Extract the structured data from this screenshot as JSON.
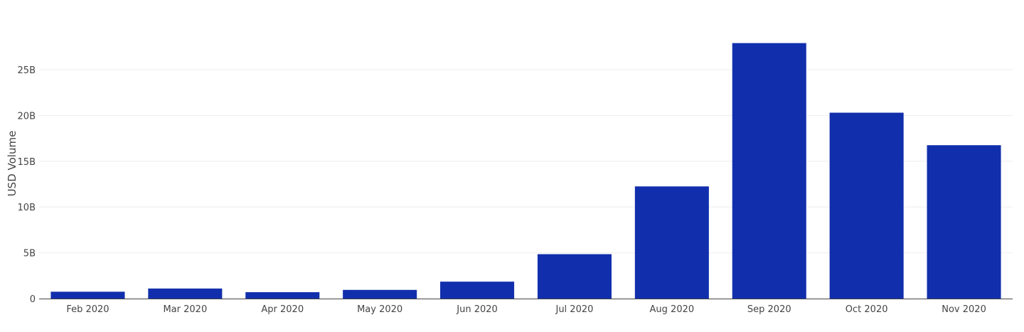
{
  "chart_data": {
    "type": "bar",
    "categories": [
      "Feb 2020",
      "Mar 2020",
      "Apr 2020",
      "May 2020",
      "Jun 2020",
      "Jul 2020",
      "Aug 2020",
      "Sep 2020",
      "Oct 2020",
      "Nov 2020"
    ],
    "values": [
      0.75,
      1.1,
      0.7,
      0.95,
      1.85,
      4.85,
      12.25,
      27.9,
      20.3,
      16.75
    ],
    "unit": "B",
    "xlabel": "",
    "ylabel": "USD Volume",
    "ylim": [
      0,
      29.5
    ],
    "yticks": [
      0,
      5,
      10,
      15,
      20,
      25
    ],
    "ytick_labels": [
      "0",
      "5B",
      "10B",
      "15B",
      "20B",
      "25B"
    ],
    "grid": true,
    "bar_color": "#112fac",
    "grid_color": "#eeeeee",
    "axis_color": "#444444"
  }
}
